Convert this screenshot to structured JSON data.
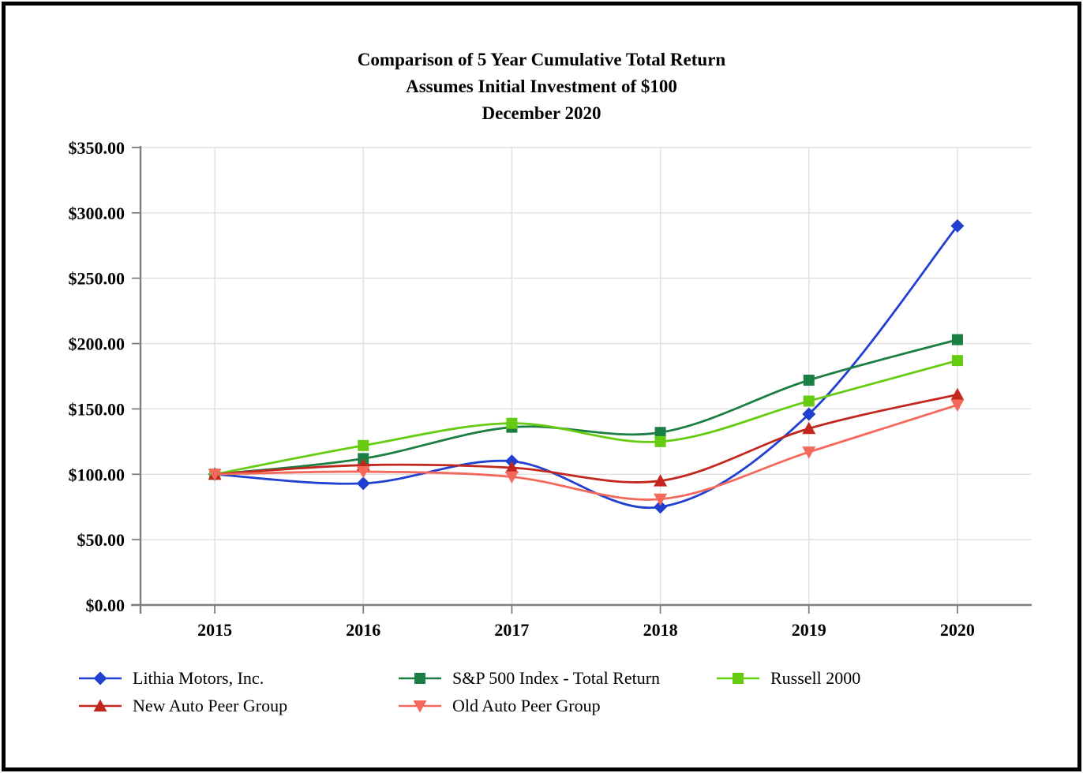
{
  "chart_data": {
    "type": "line",
    "title": "Comparison of 5 Year Cumulative Total Return",
    "subtitle": "Assumes Initial Investment of $100",
    "date_label": "December 2020",
    "categories": [
      "2015",
      "2016",
      "2017",
      "2018",
      "2019",
      "2020"
    ],
    "series": [
      {
        "name": "Lithia Motors, Inc.",
        "color": "#2240CF",
        "marker": "diamond",
        "values": [
          100,
          93,
          110,
          75,
          146,
          290
        ]
      },
      {
        "name": "S&P 500 Index - Total Return",
        "color": "#1B7E42",
        "marker": "square",
        "values": [
          100,
          112,
          136,
          132,
          172,
          203
        ]
      },
      {
        "name": "Russell 2000",
        "color": "#66CC11",
        "marker": "square",
        "values": [
          100,
          122,
          139,
          125,
          156,
          187
        ]
      },
      {
        "name": "New Auto Peer Group",
        "color": "#C2271E",
        "marker": "triangle-up",
        "values": [
          100,
          107,
          105,
          95,
          135,
          161
        ]
      },
      {
        "name": "Old Auto Peer Group",
        "color": "#F4695C",
        "marker": "triangle-down",
        "values": [
          100,
          102,
          98,
          81,
          117,
          153
        ]
      }
    ],
    "y_axis": {
      "min": 0,
      "max": 350,
      "step": 50,
      "format": "currency",
      "tick_labels": [
        "$0.00",
        "$50.00",
        "$100.00",
        "$150.00",
        "$200.00",
        "$250.00",
        "$300.00",
        "$350.00"
      ]
    },
    "x_axis": {
      "tick_labels": [
        "2015",
        "2016",
        "2017",
        "2018",
        "2019",
        "2020"
      ]
    },
    "grid": true,
    "smoothed_lines": true,
    "legend_position": "bottom"
  },
  "colors": {
    "gridline": "#E0E0E0",
    "axis": "#7F7F7F",
    "text": "#000000",
    "background": "#FFFFFF",
    "frame_border": "#000000"
  }
}
